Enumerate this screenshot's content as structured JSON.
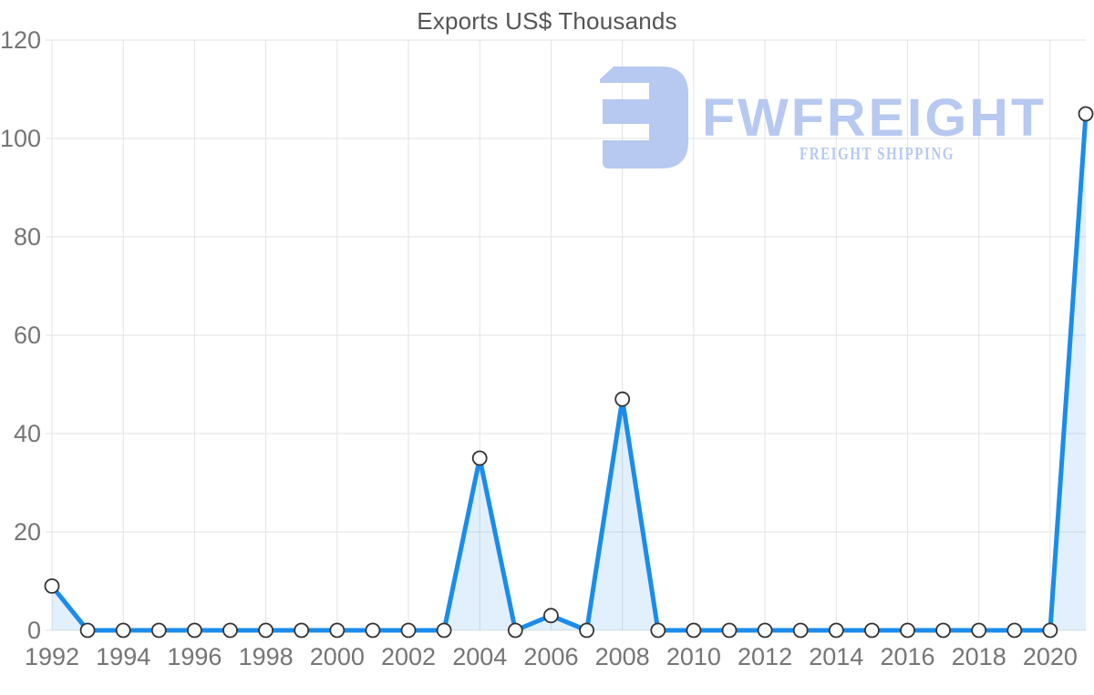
{
  "chart_data": {
    "type": "area",
    "title": "Exports US$ Thousands",
    "x": [
      1992,
      1993,
      1994,
      1995,
      1996,
      1997,
      1998,
      1999,
      2000,
      2001,
      2002,
      2003,
      2004,
      2005,
      2006,
      2007,
      2008,
      2009,
      2010,
      2011,
      2012,
      2013,
      2014,
      2015,
      2016,
      2017,
      2018,
      2019,
      2020,
      2021
    ],
    "series": [
      {
        "name": "Exports US$ Thousands",
        "values": [
          9,
          0,
          0,
          0,
          0,
          0,
          0,
          0,
          0,
          0,
          0,
          0,
          35,
          0,
          3,
          0,
          47,
          0,
          0,
          0,
          0,
          0,
          0,
          0,
          0,
          0,
          0,
          0,
          0,
          105
        ]
      }
    ],
    "xlabel": "",
    "ylabel": "",
    "ylim": [
      0,
      120
    ],
    "yticks": [
      0,
      20,
      40,
      60,
      80,
      100,
      120
    ],
    "xticks": [
      1992,
      1994,
      1996,
      1998,
      2000,
      2002,
      2004,
      2006,
      2008,
      2010,
      2012,
      2014,
      2016,
      2018,
      2020
    ],
    "grid": true,
    "legend": "none",
    "marker": "circle"
  },
  "watermark": {
    "brand": "FWFREIGHT",
    "tagline": "FREIGHT SHIPPING",
    "color": "#b7c9f1"
  },
  "style": {
    "line_color": "#1a8ceb",
    "area_fill": "rgba(26, 140, 235, 0.13)",
    "marker_fill": "#ffffff",
    "marker_stroke": "#333333",
    "grid_color": "#e3e3e3",
    "tick_label_color": "#757575",
    "title_color": "#555555",
    "background": "#ffffff"
  }
}
